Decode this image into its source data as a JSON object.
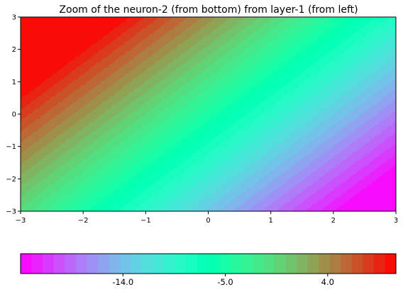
{
  "chart_data": [
    {
      "type": "heatmap",
      "title": "Zoom of the neuron-2 (from bottom) from layer-1 (from left)",
      "xlabel": "",
      "ylabel": "",
      "xlim": [
        -3,
        3
      ],
      "ylim": [
        -3,
        3
      ],
      "x_ticks": [
        -3,
        -2,
        -1,
        0,
        1,
        2,
        3
      ],
      "x_tick_labels": [
        "−3",
        "−2",
        "−1",
        "0",
        "1",
        "2",
        "3"
      ],
      "y_ticks": [
        -3,
        -2,
        -1,
        0,
        1,
        2,
        3
      ],
      "y_tick_labels": [
        "−3",
        "−2",
        "−1",
        "0",
        "1",
        "2",
        "3"
      ],
      "colormap": "rainbow",
      "surface": {
        "description_formula": "z = a*x + b*y + c (filled contour)",
        "a": -4.2,
        "b": 2.9,
        "c": -4.9,
        "corner_values": {
          "top_left": 16.5,
          "top_right": -8.7,
          "bottom_left": -1.0,
          "bottom_right": -26.2
        }
      },
      "value_range": [
        -23.0,
        10.0
      ],
      "levels": 34
    },
    {
      "type": "colorbar",
      "orientation": "horizontal",
      "range": [
        -23.0,
        10.0
      ],
      "ticks": [
        -14.0,
        -5.0,
        4.0
      ],
      "tick_labels": [
        "-14.0",
        "-5.0",
        "4.0"
      ],
      "levels": 34
    }
  ]
}
